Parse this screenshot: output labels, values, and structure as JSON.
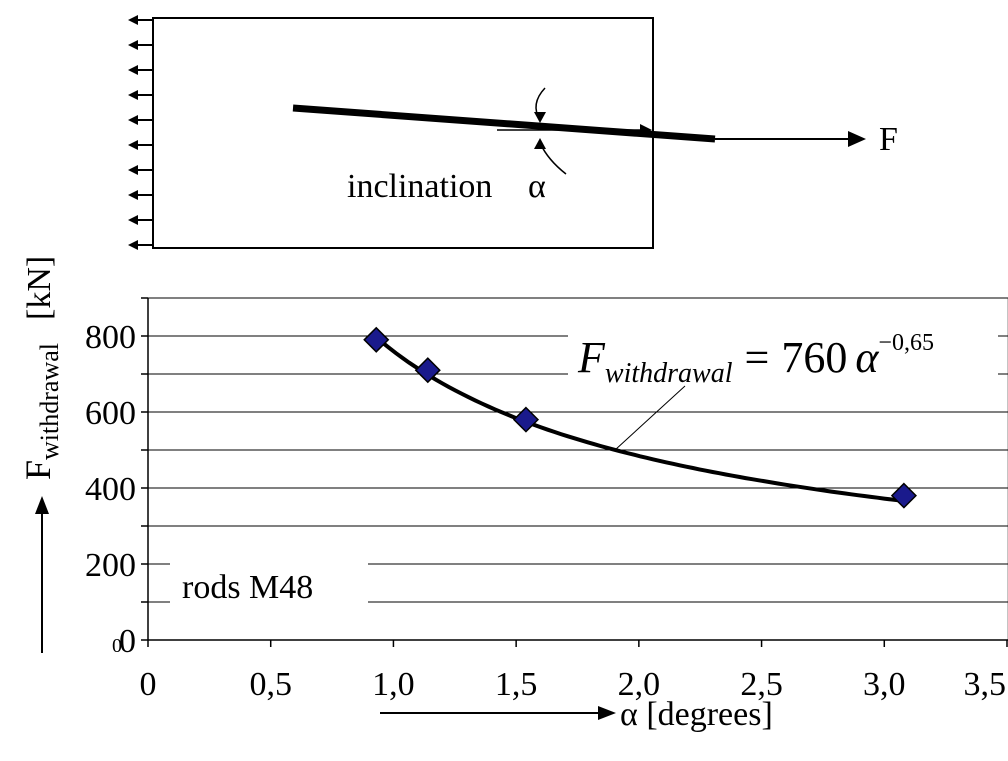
{
  "sketch": {
    "force_label": "F",
    "inclination_label": "inclination",
    "alpha_symbol": "α"
  },
  "chart_data": {
    "type": "scatter",
    "x_values": [
      0.93,
      1.14,
      1.54,
      3.08
    ],
    "y_values": [
      790,
      710,
      580,
      380
    ],
    "trend": {
      "type": "power",
      "coefficient": 760,
      "exponent": -0.65
    },
    "xlim": [
      0,
      3.5
    ],
    "ylim": [
      0,
      900
    ],
    "x_tick_values": [
      0,
      0.5,
      1.0,
      1.5,
      2.0,
      2.5,
      3.0,
      3.5
    ],
    "x_tick_labels": [
      "0",
      "0,5",
      "1,0",
      "1,5",
      "2,0",
      "2,5",
      "3,0",
      "3,5"
    ],
    "y_tick_values": [
      0,
      200,
      400,
      600,
      800
    ],
    "y_tick_labels": [
      "0",
      "200",
      "400",
      "600",
      "800"
    ],
    "y_gridlines": [
      100,
      200,
      300,
      400,
      500,
      600,
      700,
      800,
      900
    ],
    "zero_marker": "0",
    "grid": true,
    "xlabel": "α [degrees]",
    "ylabel_main": "F",
    "ylabel_sub": "withdrawal",
    "ylabel_unit": "[kN]",
    "annotation_rods": "rods M48",
    "equation": {
      "lhs": "F",
      "lhs_sub": "withdrawal",
      "equals": "=",
      "coef": "760",
      "var": "α",
      "exp": "−0,65"
    },
    "marker_color": "#1a1a8c"
  }
}
